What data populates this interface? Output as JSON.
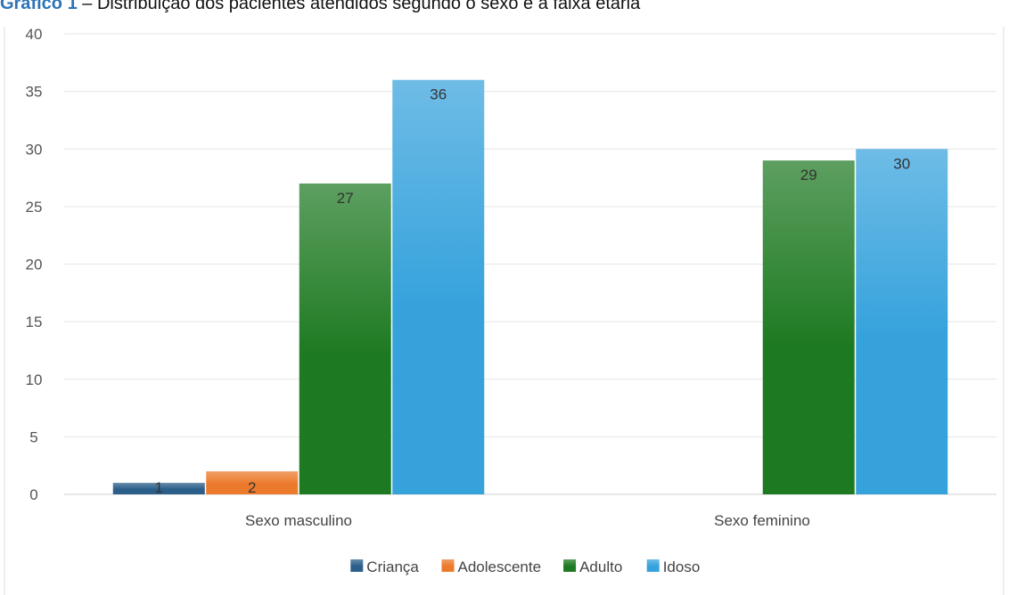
{
  "caption": {
    "lead": "Gráfico 1",
    "separator": " – ",
    "text": "Distribuição dos pacientes atendidos segundo o sexo e a faixa etária"
  },
  "chart_data": {
    "type": "bar",
    "title": "Gráfico 1 – Distribuição dos pacientes atendidos segundo o sexo e a faixa etária",
    "xlabel": "",
    "ylabel": "",
    "ylim": [
      0,
      40
    ],
    "yticks": [
      0,
      5,
      10,
      15,
      20,
      25,
      30,
      35,
      40
    ],
    "grid": true,
    "legend_position": "bottom",
    "categories": [
      "Sexo masculino",
      "Sexo feminino"
    ],
    "series": [
      {
        "name": "Criança",
        "color": "#2b5f8a",
        "values": [
          1,
          0
        ]
      },
      {
        "name": "Adolescente",
        "color": "#ec7a2c",
        "values": [
          2,
          0
        ]
      },
      {
        "name": "Adulto",
        "color": "#1e7a22",
        "values": [
          27,
          29
        ]
      },
      {
        "name": "Idoso",
        "color": "#35a2dc",
        "values": [
          36,
          30
        ]
      }
    ]
  }
}
